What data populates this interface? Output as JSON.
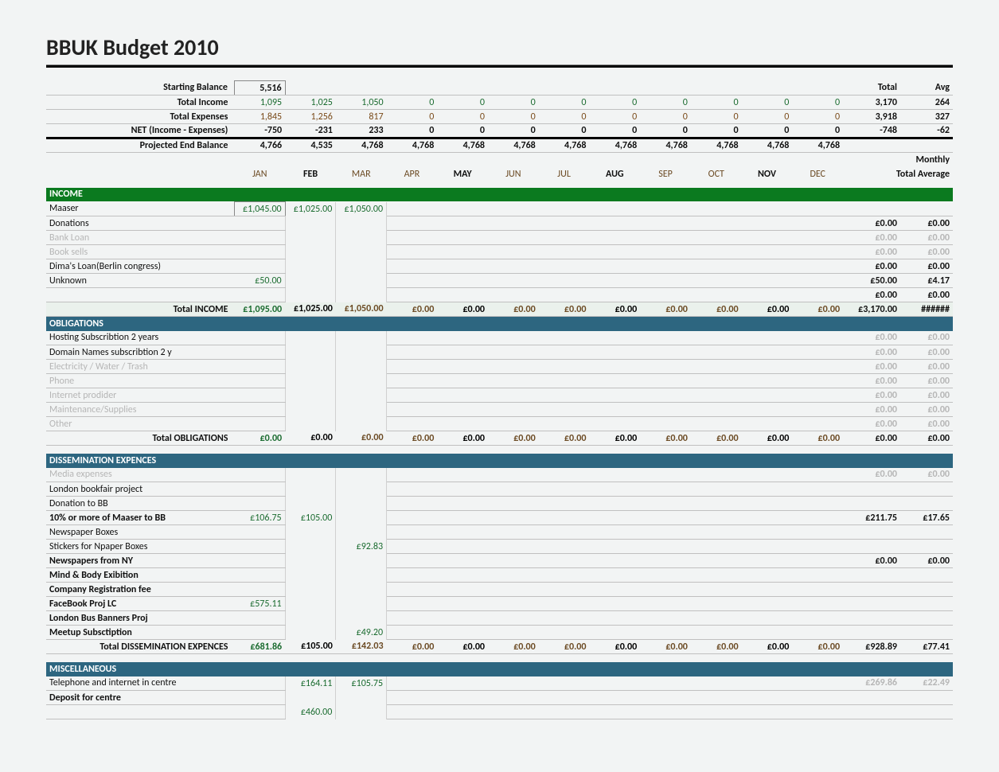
{
  "title": "BBUK Budget 2010",
  "colors": {
    "section_blue": "#2d6680",
    "section_green": "#0b7a1f",
    "text_green": "#1a6b2f",
    "text_brown": "#7a4b1a",
    "faded": "#b6b6b6",
    "stripe": "#eaf1ec"
  },
  "months": [
    "JAN",
    "FEB",
    "MAR",
    "APR",
    "MAY",
    "JUN",
    "JUL",
    "AUG",
    "SEP",
    "OCT",
    "NOV",
    "DEC"
  ],
  "summary_headers": {
    "total": "Total",
    "avg": "Avg",
    "monthly": "Monthly",
    "total_avg": "Total Average"
  },
  "summary": {
    "starting_balance": {
      "label": "Starting Balance",
      "jan": "5,516"
    },
    "total_income": {
      "label": "Total Income",
      "vals": [
        "1,095",
        "1,025",
        "1,050",
        "0",
        "0",
        "0",
        "0",
        "0",
        "0",
        "0",
        "0",
        "0"
      ],
      "total": "3,170",
      "avg": "264"
    },
    "total_expenses": {
      "label": "Total Expenses",
      "vals": [
        "1,845",
        "1,256",
        "817",
        "0",
        "0",
        "0",
        "0",
        "0",
        "0",
        "0",
        "0",
        "0"
      ],
      "total": "3,918",
      "avg": "327"
    },
    "net": {
      "label": "NET (Income - Expenses)",
      "vals": [
        "-750",
        "-231",
        "233",
        "0",
        "0",
        "0",
        "0",
        "0",
        "0",
        "0",
        "0",
        "0"
      ],
      "total": "-748",
      "avg": "-62"
    },
    "projected": {
      "label": "Projected End Balance",
      "vals": [
        "4,766",
        "4,535",
        "4,768",
        "4,768",
        "4,768",
        "4,768",
        "4,768",
        "4,768",
        "4,768",
        "4,768",
        "4,768",
        "4,768"
      ]
    }
  },
  "sections": {
    "income": {
      "header": "INCOME",
      "rows": [
        {
          "label": "Maaser",
          "vals": [
            "£1,045.00",
            "£1,025.00",
            "£1,050.00",
            "",
            "",
            "",
            "",
            "",
            "",
            "",
            "",
            ""
          ],
          "box0": true
        },
        {
          "label": "Donations",
          "vals": [
            "",
            "",
            "",
            "",
            "",
            "",
            "",
            "",
            "",
            "",
            "",
            ""
          ],
          "total": "£0.00",
          "avg": "£0.00"
        },
        {
          "label": "Bank Loan",
          "faded": true,
          "vals": [
            "",
            "",
            "",
            "",
            "",
            "",
            "",
            "",
            "",
            "",
            "",
            ""
          ],
          "total": "£0.00",
          "avg": "£0.00"
        },
        {
          "label": "Book sells",
          "faded": true,
          "vals": [
            "",
            "",
            "",
            "",
            "",
            "",
            "",
            "",
            "",
            "",
            "",
            ""
          ],
          "total": "£0.00",
          "avg": "£0.00"
        },
        {
          "label": "Dima's Loan(Berlin congress)",
          "vals": [
            "",
            "",
            "",
            "",
            "",
            "",
            "",
            "",
            "",
            "",
            "",
            ""
          ],
          "total": "£0.00",
          "avg": "£0.00"
        },
        {
          "label": "Unknown",
          "vals": [
            "£50.00",
            "",
            "",
            "",
            "",
            "",
            "",
            "",
            "",
            "",
            "",
            ""
          ],
          "total": "£50.00",
          "avg": "£4.17"
        },
        {
          "label": "",
          "vals": [
            "",
            "",
            "",
            "",
            "",
            "",
            "",
            "",
            "",
            "",
            "",
            ""
          ],
          "total": "£0.00",
          "avg": "£0.00"
        }
      ],
      "total_row": {
        "label": "Total INCOME",
        "vals": [
          "£1,095.00",
          "£1,025.00",
          "£1,050.00",
          "£0.00",
          "£0.00",
          "£0.00",
          "£0.00",
          "£0.00",
          "£0.00",
          "£0.00",
          "£0.00",
          "£0.00"
        ],
        "total": "£3,170.00",
        "avg": "######"
      }
    },
    "obligations": {
      "header": "OBLIGATIONS",
      "rows": [
        {
          "label": "Hosting Subscribtion 2 years",
          "vals": [
            "",
            "",
            "",
            "",
            "",
            "",
            "",
            "",
            "",
            "",
            "",
            ""
          ],
          "total": "£0.00",
          "avg": "£0.00",
          "faded_tot": true
        },
        {
          "label": "Domain Names subscribtion 2 y",
          "vals": [
            "",
            "",
            "",
            "",
            "",
            "",
            "",
            "",
            "",
            "",
            "",
            ""
          ],
          "total": "£0.00",
          "avg": "£0.00",
          "faded_tot": true
        },
        {
          "label": "Electricity / Water / Trash",
          "faded": true,
          "vals": [
            "",
            "",
            "",
            "",
            "",
            "",
            "",
            "",
            "",
            "",
            "",
            ""
          ],
          "total": "£0.00",
          "avg": "£0.00"
        },
        {
          "label": "Phone",
          "faded": true,
          "vals": [
            "",
            "",
            "",
            "",
            "",
            "",
            "",
            "",
            "",
            "",
            "",
            ""
          ],
          "total": "£0.00",
          "avg": "£0.00"
        },
        {
          "label": "Internet prodider",
          "faded": true,
          "vals": [
            "",
            "",
            "",
            "",
            "",
            "",
            "",
            "",
            "",
            "",
            "",
            ""
          ],
          "total": "£0.00",
          "avg": "£0.00"
        },
        {
          "label": "Maintenance/Supplies",
          "faded": true,
          "vals": [
            "",
            "",
            "",
            "",
            "",
            "",
            "",
            "",
            "",
            "",
            "",
            ""
          ],
          "total": "£0.00",
          "avg": "£0.00"
        },
        {
          "label": "Other",
          "faded": true,
          "vals": [
            "",
            "",
            "",
            "",
            "",
            "",
            "",
            "",
            "",
            "",
            "",
            ""
          ],
          "total": "£0.00",
          "avg": "£0.00"
        }
      ],
      "total_row": {
        "label": "Total OBLIGATIONS",
        "vals": [
          "£0.00",
          "£0.00",
          "£0.00",
          "£0.00",
          "£0.00",
          "£0.00",
          "£0.00",
          "£0.00",
          "£0.00",
          "£0.00",
          "£0.00",
          "£0.00"
        ],
        "total": "£0.00",
        "avg": "£0.00"
      }
    },
    "dissemination": {
      "header": "DISSEMINATION EXPENCES",
      "rows": [
        {
          "label": "Media expenses",
          "faded": true,
          "vals": [
            "",
            "",
            "",
            "",
            "",
            "",
            "",
            "",
            "",
            "",
            "",
            ""
          ],
          "total": "£0.00",
          "avg": "£0.00"
        },
        {
          "label": "London bookfair project",
          "vals": [
            "",
            "",
            "",
            "",
            "",
            "",
            "",
            "",
            "",
            "",
            "",
            ""
          ]
        },
        {
          "label": "Donation to BB",
          "vals": [
            "",
            "",
            "",
            "",
            "",
            "",
            "",
            "",
            "",
            "",
            "",
            ""
          ]
        },
        {
          "label": "10% or more of Maaser to BB",
          "vals": [
            "£106.75",
            "£105.00",
            "",
            "",
            "",
            "",
            "",
            "",
            "",
            "",
            "",
            ""
          ],
          "total": "£211.75",
          "avg": "£17.65",
          "bold": true
        },
        {
          "label": "Newspaper Boxes",
          "vals": [
            "",
            "",
            "",
            "",
            "",
            "",
            "",
            "",
            "",
            "",
            "",
            ""
          ]
        },
        {
          "label": "Stickers for Npaper Boxes",
          "vals": [
            "",
            "",
            "£92.83",
            "",
            "",
            "",
            "",
            "",
            "",
            "",
            "",
            ""
          ]
        },
        {
          "label": "Newspapers from NY",
          "vals": [
            "",
            "",
            "",
            "",
            "",
            "",
            "",
            "",
            "",
            "",
            "",
            ""
          ],
          "total": "£0.00",
          "avg": "£0.00",
          "bold": true
        },
        {
          "label": "Mind & Body Exibition",
          "vals": [
            "",
            "",
            "",
            "",
            "",
            "",
            "",
            "",
            "",
            "",
            "",
            ""
          ],
          "bold": true
        },
        {
          "label": "Company Registration fee",
          "vals": [
            "",
            "",
            "",
            "",
            "",
            "",
            "",
            "",
            "",
            "",
            "",
            ""
          ],
          "bold": true
        },
        {
          "label": "FaceBook Proj LC",
          "vals": [
            "£575.11",
            "",
            "",
            "",
            "",
            "",
            "",
            "",
            "",
            "",
            "",
            ""
          ],
          "bold": true
        },
        {
          "label": "London Bus Banners Proj",
          "vals": [
            "",
            "",
            "",
            "",
            "",
            "",
            "",
            "",
            "",
            "",
            "",
            ""
          ],
          "bold": true
        },
        {
          "label": "Meetup Subsctiption",
          "vals": [
            "",
            "",
            "£49.20",
            "",
            "",
            "",
            "",
            "",
            "",
            "",
            "",
            ""
          ],
          "bold": true
        }
      ],
      "total_row": {
        "label": "Total DISSEMINATION EXPENCES",
        "vals": [
          "£681.86",
          "£105.00",
          "£142.03",
          "£0.00",
          "£0.00",
          "£0.00",
          "£0.00",
          "£0.00",
          "£0.00",
          "£0.00",
          "£0.00",
          "£0.00"
        ],
        "total": "£928.89",
        "avg": "£77.41"
      }
    },
    "misc": {
      "header": "MISCELLANEOUS",
      "rows": [
        {
          "label": "Telephone and internet in centre",
          "vals": [
            "",
            "£164.11",
            "£105.75",
            "",
            "",
            "",
            "",
            "",
            "",
            "",
            "",
            ""
          ],
          "total": "£269.86",
          "avg": "£22.49",
          "faded_tot": true
        },
        {
          "label": "Deposit for centre",
          "vals": [
            "",
            "",
            "",
            "",
            "",
            "",
            "",
            "",
            "",
            "",
            "",
            ""
          ],
          "bold": true
        },
        {
          "label": "",
          "vals": [
            "",
            "£460.00",
            "",
            "",
            "",
            "",
            "",
            "",
            "",
            "",
            "",
            ""
          ]
        }
      ]
    }
  },
  "bold_months": [
    "FEB",
    "MAY",
    "AUG",
    "NOV"
  ]
}
